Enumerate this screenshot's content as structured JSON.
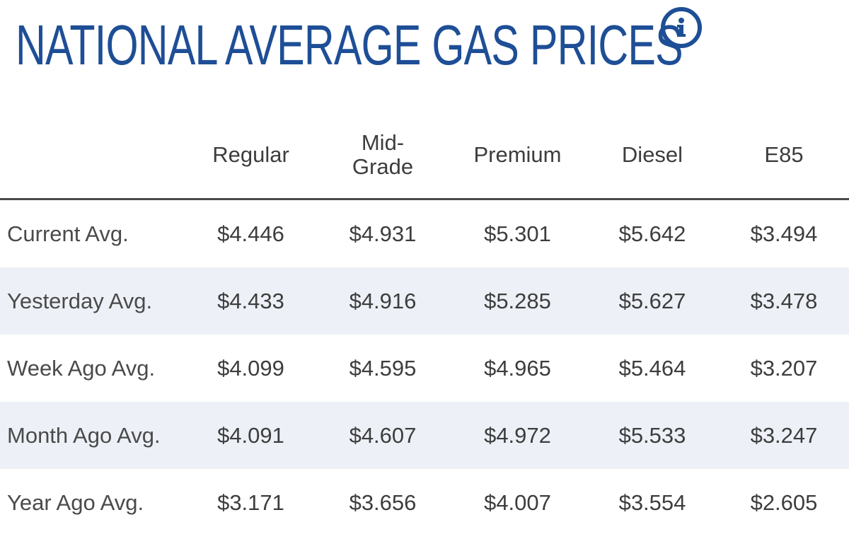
{
  "header": {
    "title": "NATIONAL AVERAGE GAS PRICES",
    "info_icon": "info-circle-icon",
    "title_color": "#1e4e96"
  },
  "table": {
    "columns": [
      "Regular",
      "Mid-Grade",
      "Premium",
      "Diesel",
      "E85"
    ],
    "rows": [
      {
        "label": "Current Avg.",
        "values": [
          "$4.446",
          "$4.931",
          "$5.301",
          "$5.642",
          "$3.494"
        ]
      },
      {
        "label": "Yesterday Avg.",
        "values": [
          "$4.433",
          "$4.916",
          "$5.285",
          "$5.627",
          "$3.478"
        ]
      },
      {
        "label": "Week Ago Avg.",
        "values": [
          "$4.099",
          "$4.595",
          "$4.965",
          "$5.464",
          "$3.207"
        ]
      },
      {
        "label": "Month Ago Avg.",
        "values": [
          "$4.091",
          "$4.607",
          "$4.972",
          "$5.533",
          "$3.247"
        ]
      },
      {
        "label": "Year Ago Avg.",
        "values": [
          "$3.171",
          "$3.656",
          "$4.007",
          "$3.554",
          "$2.605"
        ]
      }
    ],
    "stripe_color": "#edf1f7"
  }
}
